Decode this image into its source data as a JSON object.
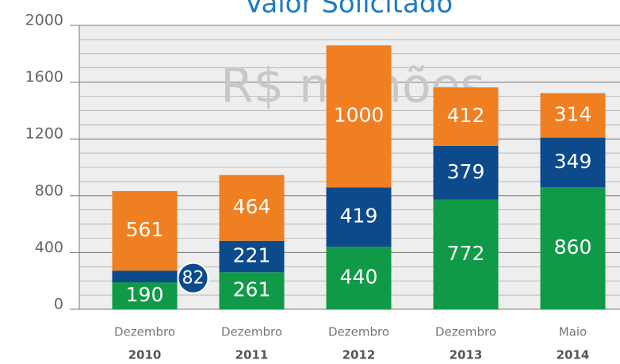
{
  "chart_data": {
    "type": "stacked_bar",
    "title": "Valor Solicitado",
    "watermark": "R$ milhões",
    "categories": [
      [
        "Dezembro",
        "2010"
      ],
      [
        "Dezembro",
        "2011"
      ],
      [
        "Dezembro",
        "2012"
      ],
      [
        "Dezembro",
        "2013"
      ],
      [
        "Maio",
        "2014"
      ]
    ],
    "series": [
      {
        "color": "#109a48",
        "values": [
          190,
          261,
          440,
          772,
          860
        ]
      },
      {
        "color": "#0d4a8c",
        "values": [
          82,
          221,
          419,
          379,
          349
        ]
      },
      {
        "color": "#f07f22",
        "values": [
          561,
          464,
          1000,
          412,
          314
        ]
      }
    ],
    "ylim": [
      0,
      2000
    ],
    "yticks": [
      0,
      400,
      800,
      1200,
      1600,
      2000
    ],
    "minor_yticks": [
      100,
      200,
      300,
      500,
      600,
      700,
      900,
      1000,
      1100,
      1300,
      1400,
      1500,
      1700,
      1800,
      1900
    ],
    "grid": true
  }
}
